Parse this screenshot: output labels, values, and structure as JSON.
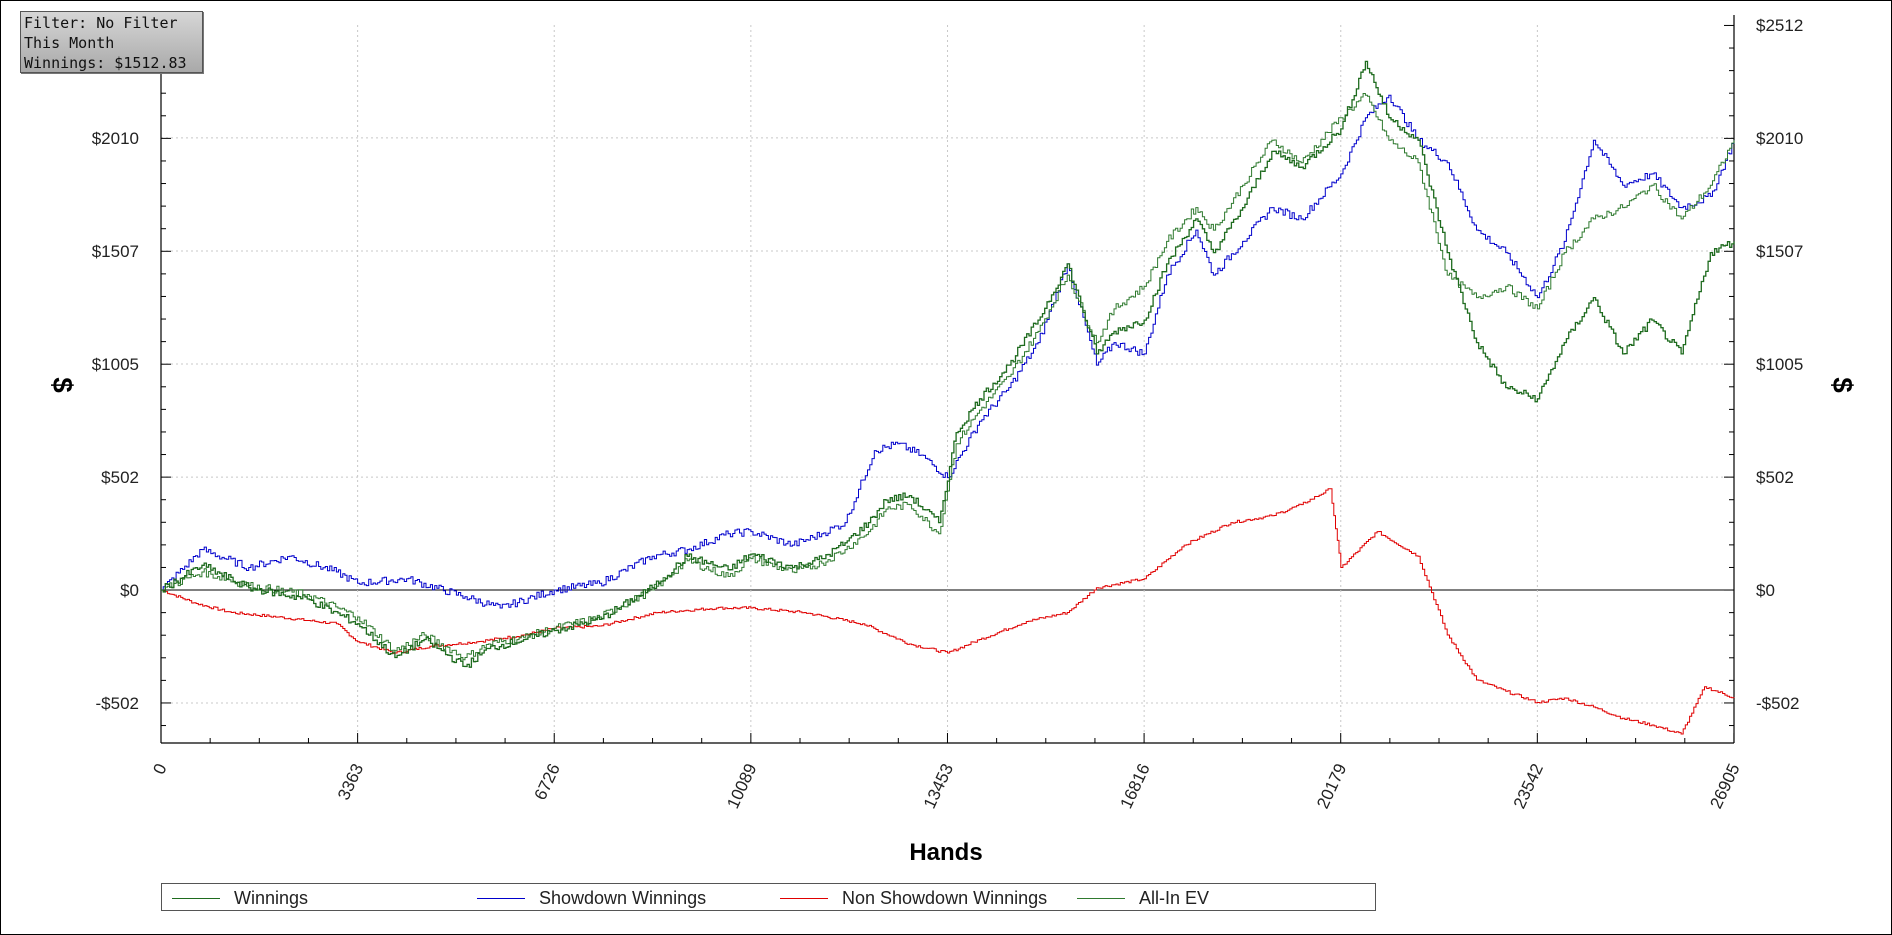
{
  "info": {
    "filter": "Filter: No Filter",
    "period": "This Month",
    "winnings": "Winnings: $1512.83"
  },
  "colors": {
    "winnings": "#1e6b1e",
    "showdown": "#0000cc",
    "non_showdown": "#e00000",
    "allin_ev": "#2f7a2f",
    "grid": "#c8c8c8",
    "zero_line": "#000000"
  },
  "chart_data": {
    "type": "line",
    "title": "",
    "xlabel": "Hands",
    "ylabel": "$",
    "ylabel_right": "$",
    "xlim": [
      0,
      26905
    ],
    "ylim": [
      -680,
      2512
    ],
    "x_ticks": [
      0,
      3363,
      6726,
      10089,
      13453,
      16816,
      20179,
      23542,
      26905
    ],
    "x_tick_labels": [
      "0",
      "3363",
      "6726",
      "10089",
      "13453",
      "16816",
      "20179",
      "23542",
      "26905"
    ],
    "y_ticks": [
      -502,
      0,
      502,
      1005,
      1507,
      2010
    ],
    "y_tick_labels": [
      "-$502",
      "$0",
      "$502",
      "$1005",
      "$1507",
      "$2010"
    ],
    "y_right_ticks": [
      -502,
      0,
      502,
      1005,
      1507,
      2010,
      2512
    ],
    "y_right_tick_labels": [
      "-$502",
      "$0",
      "$502",
      "$1005",
      "$1507",
      "$2010",
      "$2512"
    ],
    "grid": true,
    "legend_position": "bottom",
    "series": [
      {
        "name": "Winnings",
        "color": "#1e6b1e",
        "x": [
          0,
          700,
          1500,
          2500,
          3363,
          4000,
          4500,
          5200,
          5600,
          6200,
          6726,
          7500,
          8400,
          9000,
          9700,
          10089,
          10800,
          11300,
          11700,
          12100,
          12400,
          12800,
          13300,
          13600,
          14000,
          14500,
          15000,
          15500,
          16000,
          16300,
          16816,
          17200,
          17700,
          18000,
          18500,
          19000,
          19500,
          20179,
          20600,
          21000,
          21500,
          22000,
          22500,
          23000,
          23542,
          24000,
          24500,
          25000,
          25500,
          26000,
          26500,
          26905
        ],
        "y": [
          0,
          110,
          10,
          -40,
          -150,
          -300,
          -220,
          -340,
          -260,
          -220,
          -180,
          -130,
          10,
          150,
          90,
          160,
          100,
          140,
          210,
          300,
          400,
          420,
          300,
          700,
          850,
          1000,
          1200,
          1450,
          1050,
          1150,
          1200,
          1450,
          1650,
          1500,
          1700,
          1950,
          1880,
          2050,
          2350,
          2100,
          2000,
          1500,
          1100,
          900,
          850,
          1100,
          1300,
          1050,
          1200,
          1050,
          1500,
          1550
        ]
      },
      {
        "name": "Showdown Winnings",
        "color": "#0000cc",
        "x": [
          0,
          700,
          1500,
          2200,
          3000,
          3363,
          4200,
          5200,
          5800,
          6726,
          7500,
          8400,
          9000,
          9700,
          10089,
          10800,
          11300,
          11700,
          12200,
          12600,
          13000,
          13453,
          14000,
          14500,
          15000,
          15500,
          16000,
          16300,
          16816,
          17200,
          17700,
          18000,
          18500,
          19000,
          19500,
          20179,
          20600,
          21000,
          21500,
          22000,
          22500,
          23000,
          23542,
          24000,
          24500,
          25000,
          25500,
          26000,
          26500,
          26905
        ],
        "y": [
          0,
          180,
          100,
          150,
          80,
          30,
          50,
          -30,
          -80,
          0,
          30,
          150,
          180,
          250,
          260,
          200,
          250,
          300,
          620,
          650,
          600,
          500,
          750,
          900,
          1100,
          1450,
          1000,
          1100,
          1050,
          1400,
          1600,
          1400,
          1550,
          1700,
          1650,
          1850,
          2100,
          2200,
          2000,
          1900,
          1600,
          1500,
          1300,
          1550,
          2000,
          1800,
          1850,
          1700,
          1750,
          2000
        ]
      },
      {
        "name": "Non Showdown Winnings",
        "color": "#e00000",
        "x": [
          0,
          600,
          1200,
          2000,
          3000,
          3363,
          4000,
          4600,
          5400,
          6200,
          6726,
          7500,
          8500,
          9500,
          10089,
          11000,
          12000,
          12800,
          13453,
          14000,
          14800,
          15500,
          16000,
          16816,
          17500,
          18300,
          19000,
          19500,
          20000,
          20179,
          20800,
          21500,
          22000,
          22500,
          23000,
          23542,
          24000,
          24500,
          25000,
          25500,
          26000,
          26400,
          26905
        ],
        "y": [
          0,
          -60,
          -100,
          -120,
          -150,
          -230,
          -280,
          -250,
          -230,
          -200,
          -170,
          -160,
          -100,
          -80,
          -80,
          -100,
          -150,
          -240,
          -280,
          -220,
          -140,
          -100,
          10,
          50,
          200,
          300,
          330,
          380,
          450,
          100,
          260,
          150,
          -200,
          -400,
          -450,
          -500,
          -480,
          -520,
          -570,
          -600,
          -640,
          -430,
          -480
        ]
      },
      {
        "name": "All-In EV",
        "color": "#2f7a2f",
        "x": [
          0,
          700,
          1500,
          2500,
          3363,
          4000,
          4500,
          5200,
          5600,
          6200,
          6726,
          7500,
          8400,
          9000,
          9700,
          10089,
          10800,
          11300,
          11700,
          12100,
          12400,
          12800,
          13300,
          13600,
          14000,
          14500,
          15000,
          15500,
          16000,
          16300,
          16816,
          17200,
          17700,
          18000,
          18500,
          19000,
          19500,
          20179,
          20600,
          21000,
          21500,
          22000,
          22500,
          23000,
          23542,
          24000,
          24500,
          25000,
          25500,
          26000,
          26500,
          26905
        ],
        "y": [
          0,
          80,
          20,
          -20,
          -120,
          -270,
          -200,
          -300,
          -240,
          -210,
          -170,
          -120,
          0,
          130,
          60,
          140,
          80,
          120,
          180,
          260,
          360,
          380,
          250,
          650,
          800,
          950,
          1150,
          1400,
          1100,
          1250,
          1350,
          1550,
          1700,
          1600,
          1800,
          2000,
          1900,
          2100,
          2200,
          2000,
          1900,
          1400,
          1300,
          1350,
          1250,
          1500,
          1650,
          1700,
          1800,
          1650,
          1800,
          2000
        ]
      }
    ]
  }
}
